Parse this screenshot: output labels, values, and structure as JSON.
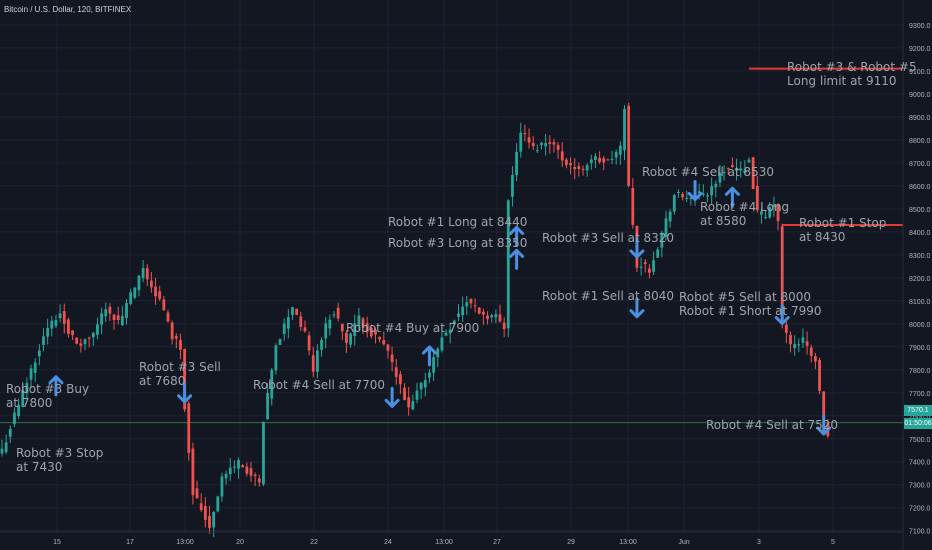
{
  "header": {
    "title": "Bitcoin / U.S. Dollar, 120, BITFINEX"
  },
  "price_tags": {
    "last": "7570.1",
    "countdown": "01:50:06"
  },
  "colors": {
    "bg": "#131722",
    "grid": "#1f2330",
    "up": "#26a69a",
    "down": "#ef5350",
    "arrow": "#4a90e2",
    "level": "#e53935",
    "lastline": "#4caf50"
  },
  "chart_data": {
    "type": "candlestick",
    "title": "Bitcoin / U.S. Dollar, 120, BITFINEX",
    "ylim": [
      7030,
      9420
    ],
    "x_ticks": [
      "15",
      "17",
      "13:00",
      "20",
      "22",
      "24",
      "13:00",
      "27",
      "29",
      "13:00",
      "Jun",
      "3",
      "5"
    ],
    "y_ticks": [
      "7100.0",
      "7200.0",
      "7300.0",
      "7400.0",
      "7500.0",
      "7600.0",
      "7700.0",
      "7800.0",
      "7900.0",
      "8000.0",
      "8100.0",
      "8200.0",
      "8300.0",
      "8400.0",
      "8500.0",
      "8600.0",
      "8700.0",
      "8800.0",
      "8900.0",
      "9000.0",
      "9100.0",
      "9200.0",
      "9300.0"
    ],
    "y_tick_values": [
      7100,
      7200,
      7300,
      7400,
      7500,
      7600,
      7700,
      7800,
      7900,
      8000,
      8100,
      8200,
      8300,
      8400,
      8500,
      8600,
      8700,
      8800,
      8900,
      9000,
      9100,
      9200,
      9300
    ],
    "last_price": 7570.1,
    "grid": true,
    "anchors": [
      [
        0,
        7450
      ],
      [
        5,
        7700
      ],
      [
        10,
        7950
      ],
      [
        14,
        8050
      ],
      [
        18,
        7900
      ],
      [
        22,
        7950
      ],
      [
        25,
        8080
      ],
      [
        28,
        8000
      ],
      [
        31,
        8120
      ],
      [
        34,
        8230
      ],
      [
        38,
        8100
      ],
      [
        41,
        7950
      ],
      [
        43,
        7900
      ],
      [
        44,
        7640
      ],
      [
        46,
        7270
      ],
      [
        50,
        7120
      ],
      [
        53,
        7330
      ],
      [
        57,
        7400
      ],
      [
        62,
        7300
      ],
      [
        63,
        7570
      ],
      [
        66,
        7900
      ],
      [
        70,
        8080
      ],
      [
        73,
        7950
      ],
      [
        75,
        7800
      ],
      [
        77,
        7950
      ],
      [
        80,
        8060
      ],
      [
        83,
        7920
      ],
      [
        86,
        8020
      ],
      [
        89,
        7960
      ],
      [
        93,
        7880
      ],
      [
        95,
        7770
      ],
      [
        98,
        7620
      ],
      [
        100,
        7700
      ],
      [
        103,
        7800
      ],
      [
        106,
        7940
      ],
      [
        109,
        8020
      ],
      [
        112,
        8100
      ],
      [
        116,
        8040
      ],
      [
        119,
        8030
      ],
      [
        121,
        7990
      ],
      [
        122,
        8550
      ],
      [
        125,
        8840
      ],
      [
        128,
        8760
      ],
      [
        132,
        8800
      ],
      [
        135,
        8720
      ],
      [
        139,
        8660
      ],
      [
        142,
        8720
      ],
      [
        146,
        8700
      ],
      [
        149,
        8760
      ],
      [
        150,
        8950
      ],
      [
        151,
        8590
      ],
      [
        153,
        8260
      ],
      [
        156,
        8240
      ],
      [
        159,
        8390
      ],
      [
        162,
        8560
      ],
      [
        164,
        8550
      ],
      [
        167,
        8560
      ],
      [
        170,
        8570
      ],
      [
        172,
        8620
      ],
      [
        175,
        8690
      ],
      [
        178,
        8660
      ],
      [
        180,
        8720
      ],
      [
        182,
        8480
      ],
      [
        184,
        8460
      ],
      [
        186,
        8530
      ],
      [
        187,
        8430
      ],
      [
        188,
        8000
      ],
      [
        190,
        7900
      ],
      [
        193,
        7930
      ],
      [
        196,
        7830
      ],
      [
        198,
        7580
      ],
      [
        199,
        7530
      ]
    ],
    "annotations": [
      "Robot #3 Buy\nat 7800",
      "Robot #3 Sell\nat 7680",
      "Robot #3 Stop\nat 7430",
      "Robot #4 Sell at 7700",
      "Robot #4 Buy at 7900",
      "Robot #1 Long at 8440",
      "Robot #3 Long at 8350",
      "Robot #3 Sell at 8320",
      "Robot #1 Sell at 8040",
      "Robot #4 Sell at 8530",
      "Robot #4 Long\nat 8580",
      "Robot #3 & Robot #5\nLong limit at 9110",
      "Robot #1 Stop\nat 8430",
      "Robot #5 Sell at 8000\nRobot #1 Short at 7990",
      "Robot #4 Sell at 7520"
    ],
    "arrows": [
      {
        "candle": 13,
        "price": 7730,
        "dir": "up"
      },
      {
        "candle": 44,
        "price": 7700,
        "dir": "down"
      },
      {
        "candle": 94,
        "price": 7680,
        "dir": "down"
      },
      {
        "candle": 103,
        "price": 7860,
        "dir": "up"
      },
      {
        "candle": 124,
        "price": 8380,
        "dir": "up"
      },
      {
        "candle": 124,
        "price": 8280,
        "dir": "up"
      },
      {
        "candle": 153,
        "price": 8330,
        "dir": "down"
      },
      {
        "candle": 153,
        "price": 8070,
        "dir": "down"
      },
      {
        "candle": 167,
        "price": 8580,
        "dir": "down"
      },
      {
        "candle": 176,
        "price": 8550,
        "dir": "up"
      },
      {
        "candle": 188,
        "price": 8040,
        "dir": "down"
      },
      {
        "candle": 198,
        "price": 7560,
        "dir": "down"
      }
    ],
    "levels": [
      {
        "price": 9110,
        "from_candle": 180
      },
      {
        "price": 8430,
        "from_candle": 188
      }
    ]
  }
}
